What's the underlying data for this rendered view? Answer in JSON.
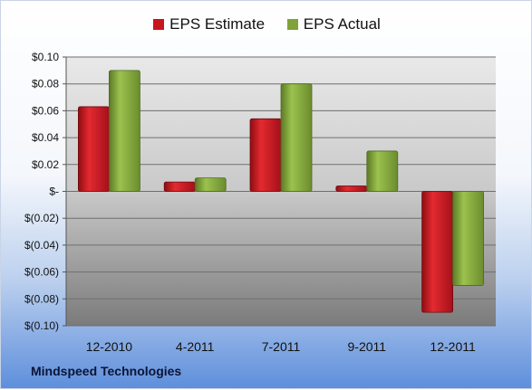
{
  "chart_data": {
    "type": "bar",
    "categories": [
      "12-2010",
      "4-2011",
      "7-2011",
      "9-2011",
      "12-2011"
    ],
    "series": [
      {
        "name": "EPS Estimate",
        "values": [
          0.063,
          0.007,
          0.054,
          0.004,
          -0.09
        ],
        "color": "#c8141e"
      },
      {
        "name": "EPS Actual",
        "values": [
          0.09,
          0.01,
          0.08,
          0.03,
          -0.07
        ],
        "color": "#7fa23a"
      }
    ],
    "yticks": [
      0.1,
      0.08,
      0.06,
      0.04,
      0.02,
      0,
      -0.02,
      -0.04,
      -0.06,
      -0.08,
      -0.1
    ],
    "ytick_labels": [
      "$0.10",
      "$0.08",
      "$0.06",
      "$0.04",
      "$0.02",
      "$-",
      "$(0.02)",
      "$(0.04)",
      "$(0.06)",
      "$(0.08)",
      "$(0.10)"
    ],
    "ylim": [
      -0.1,
      0.1
    ],
    "grid": true,
    "legend_position": "top-center"
  },
  "footer": {
    "company": "Mindspeed Technologies"
  }
}
